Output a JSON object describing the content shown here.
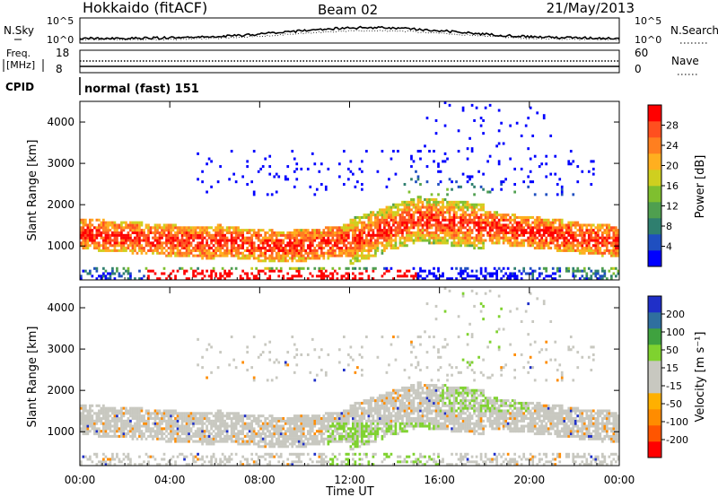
{
  "header": {
    "station": "Hokkaido (fitACF)",
    "beam": "Beam 02",
    "date": "21/May/2013"
  },
  "strips": {
    "nsky": {
      "label": "N.Sky",
      "ticks": [
        "10^5",
        "10^0"
      ]
    },
    "nsearch": {
      "label": "N.Search",
      "ticks": [
        "10^5",
        "10^0"
      ]
    },
    "freq": {
      "label_line1": "Freq.",
      "label_line2": "[MHz]",
      "ticks": [
        "18",
        "8"
      ]
    },
    "nave": {
      "label": "Nave",
      "ticks": [
        "60",
        "0"
      ]
    },
    "cpid": {
      "label": "CPID",
      "value": "normal (fast) 151"
    }
  },
  "colors": {
    "power": [
      "#0000ff",
      "#1f4fc0",
      "#2f7f6f",
      "#4f9f4f",
      "#7fbf2f",
      "#cfcf1f",
      "#ffaf1f",
      "#ff7f1f",
      "#ff4f1f",
      "#ff0000"
    ],
    "velocity": [
      "#ff0000",
      "#ff5500",
      "#ff8c00",
      "#ffb000",
      "#c8c8c0",
      "#c8c8c0",
      "#7fd22f",
      "#3fa23f",
      "#2f6f9f",
      "#1f2fc8"
    ],
    "velocity_grey": "#c8c8c0"
  },
  "chart_data": [
    {
      "type": "heatmap",
      "name": "power",
      "ylabel": "Slant Range [km]",
      "xlabel": "",
      "colorbar_label": "Power [dB]",
      "colorbar_ticks": [
        "4",
        "8",
        "12",
        "16",
        "20",
        "24",
        "28"
      ],
      "xlim": [
        0,
        24
      ],
      "ylim": [
        180,
        4500
      ],
      "yticks": [
        "1000",
        "2000",
        "3000",
        "4000"
      ],
      "ytick_values": [
        1000,
        2000,
        3000,
        4000
      ]
    },
    {
      "type": "heatmap",
      "name": "velocity",
      "ylabel": "Slant Range [km]",
      "xlabel": "Time UT",
      "colorbar_label": "Velocity [m s⁻¹]",
      "colorbar_ticks": [
        "200",
        "100",
        "50",
        "15",
        "-15",
        "-50",
        "-100",
        "-200"
      ],
      "xlim": [
        0,
        24
      ],
      "ylim": [
        180,
        4500
      ],
      "yticks": [
        "1000",
        "2000",
        "3000",
        "4000"
      ],
      "ytick_values": [
        1000,
        2000,
        3000,
        4000
      ],
      "xticks": [
        "00:00",
        "04:00",
        "08:00",
        "12:00",
        "16:00",
        "20:00",
        "00:00"
      ],
      "xtick_values": [
        0,
        4,
        8,
        12,
        16,
        20,
        24
      ]
    }
  ]
}
